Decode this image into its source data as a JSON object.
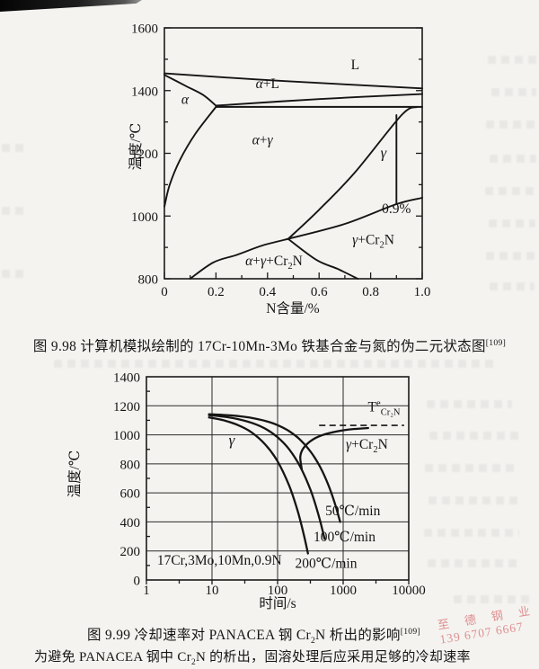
{
  "figure_captions": {
    "fig98": {
      "parts": [
        {
          "t": "图 9.98  计算机模拟绘制的 17Cr-10Mn-3Mo 铁基合金与氮的伪二元状态图"
        },
        {
          "t": "[109]",
          "sup": true
        }
      ]
    },
    "fig99": {
      "parts": [
        {
          "t": "图 9.99  冷却速率对 PANACEA 钢 Cr"
        },
        {
          "t": "2",
          "sub": true
        },
        {
          "t": "N 析出的影响"
        },
        {
          "t": "[109]",
          "sup": true
        }
      ]
    },
    "footnote": {
      "parts": [
        {
          "t": "为避免 PANACEA 钢中 Cr"
        },
        {
          "t": "2",
          "sub": true
        },
        {
          "t": "N 的析出，固溶处理后应采用足够的冷却速率"
        }
      ]
    }
  },
  "watermark": {
    "line1": "至 德 钢 业",
    "line2": "139 6707 6667",
    "color": "rgba(219,124,126,0.85)"
  },
  "chart_data": [
    {
      "id": "fig-9-98",
      "type": "line",
      "title": "17Cr-10Mn-3Mo 铁基合金与氮的伪二元状态图",
      "xlabel": "N含量/%",
      "ylabel": "温度/℃",
      "xscale": "linear",
      "xlim": [
        0,
        1.0
      ],
      "ylim": [
        800,
        1600
      ],
      "grid": false,
      "xtick_values": [
        0,
        0.2,
        0.4,
        0.6,
        0.8,
        1.0
      ],
      "xtick_labels": [
        "0",
        "0.2",
        "0.4",
        "0.6",
        "0.8",
        "1.0"
      ],
      "xtick_minor": [
        0.1,
        0.3,
        0.5,
        0.7,
        0.9
      ],
      "ytick_values": [
        800,
        1000,
        1200,
        1400,
        1600
      ],
      "ytick_labels": [
        "800",
        "1000",
        "1200",
        "1400",
        "1600"
      ],
      "ytick_minor": [
        900,
        1100,
        1300,
        1500
      ],
      "boundaries": [
        {
          "name": "liquidus",
          "points": [
            [
              0,
              1455
            ],
            [
              0.35,
              1436
            ],
            [
              0.7,
              1420
            ],
            [
              1.0,
              1407
            ]
          ]
        },
        {
          "name": "alpha-liquidus-left",
          "points": [
            [
              0,
              1450
            ],
            [
              0.08,
              1416
            ],
            [
              0.15,
              1386
            ],
            [
              0.2,
              1352
            ]
          ]
        },
        {
          "name": "alpha-plus-L-lower",
          "points": [
            [
              0.2,
              1352
            ],
            [
              0.6,
              1373
            ],
            [
              1.0,
              1389
            ]
          ]
        },
        {
          "name": "solidus-1350",
          "points": [
            [
              0.2,
              1348
            ],
            [
              1.0,
              1348
            ]
          ]
        },
        {
          "name": "alpha-to-alphagamma",
          "points": [
            [
              0.2,
              1348
            ],
            [
              0.12,
              1262
            ],
            [
              0.06,
              1178
            ],
            [
              0.02,
              1098
            ],
            [
              0,
              1030
            ]
          ]
        },
        {
          "name": "alphagamma-to-gamma",
          "points": [
            [
              0.98,
              1348
            ],
            [
              0.92,
              1322
            ],
            [
              0.74,
              1140
            ],
            [
              0.6,
              1020
            ],
            [
              0.48,
              927
            ]
          ]
        },
        {
          "name": "gamma-to-gammaCr2N",
          "points": [
            [
              0.48,
              927
            ],
            [
              0.7,
              975
            ],
            [
              0.9,
              1038
            ],
            [
              1.0,
              1058
            ]
          ]
        },
        {
          "name": "alphagammaCr2N-left",
          "points": [
            [
              0.1,
              800
            ],
            [
              0.19,
              852
            ],
            [
              0.28,
              876
            ],
            [
              0.38,
              906
            ],
            [
              0.48,
              927
            ]
          ]
        },
        {
          "name": "alphagammaCr2N-right",
          "points": [
            [
              0.48,
              927
            ],
            [
              0.59,
              860
            ],
            [
              0.67,
              832
            ],
            [
              0.75,
              800
            ]
          ]
        },
        {
          "name": "composition-0.9-line",
          "points": [
            [
              0.9,
              1322
            ],
            [
              0.9,
              1040
            ]
          ]
        }
      ],
      "annotations": [
        {
          "text": "L",
          "x": 0.74,
          "y": 1468
        },
        {
          "text": "α+L",
          "x": 0.4,
          "y": 1408
        },
        {
          "text": "α",
          "x": 0.08,
          "y": 1357
        },
        {
          "text": "α+γ",
          "x": 0.38,
          "y": 1228
        },
        {
          "text": "γ",
          "x": 0.85,
          "y": 1186,
          "size": 16.5
        },
        {
          "text": "0.9%",
          "x": 0.9,
          "y": 1009
        },
        {
          "text": "γ+Cr~2~N",
          "x": 0.81,
          "y": 911
        },
        {
          "text": "α+γ+Cr~2~N",
          "x": 0.425,
          "y": 843
        }
      ]
    },
    {
      "id": "fig-9-99",
      "type": "line",
      "title": "冷却速率对 PANACEA 钢 Cr2N 析出的影响",
      "xlabel": "时间/s",
      "ylabel": "温度/℃",
      "xscale": "log",
      "xlim": [
        1,
        10000
      ],
      "ylim": [
        0,
        1400
      ],
      "grid": true,
      "xtick_values": [
        1,
        10,
        100,
        1000,
        10000
      ],
      "xtick_labels": [
        "1",
        "10",
        "100",
        "1000",
        "10000"
      ],
      "xtick_minor": [
        3.162,
        31.62,
        316.2,
        3162
      ],
      "ytick_values": [
        0,
        200,
        400,
        600,
        800,
        1000,
        1200,
        1400
      ],
      "ytick_labels": [
        "0",
        "200",
        "400",
        "600",
        "800",
        "1000",
        "1200",
        "1400"
      ],
      "ytick_minor": [
        100,
        300,
        500,
        700,
        900,
        1100,
        1300
      ],
      "series": [
        {
          "name": "50℃/min cooling curve",
          "points": [
            [
              9,
              1142
            ],
            [
              15,
              1137
            ],
            [
              25,
              1129
            ],
            [
              40,
              1117
            ],
            [
              65,
              1096
            ],
            [
              100,
              1067
            ],
            [
              150,
              1025
            ],
            [
              220,
              967
            ],
            [
              320,
              883
            ],
            [
              450,
              775
            ],
            [
              600,
              650
            ],
            [
              750,
              525
            ],
            [
              900,
              400
            ]
          ]
        },
        {
          "name": "100℃/min cooling curve",
          "points": [
            [
              9,
              1135
            ],
            [
              15,
              1125
            ],
            [
              25,
              1108
            ],
            [
              40,
              1083
            ],
            [
              65,
              1042
            ],
            [
              100,
              983
            ],
            [
              150,
              900
            ],
            [
              220,
              783
            ],
            [
              320,
              617
            ],
            [
              430,
              433
            ],
            [
              520,
              283
            ]
          ]
        },
        {
          "name": "200℃/min cooling curve",
          "points": [
            [
              9,
              1120
            ],
            [
              15,
              1100
            ],
            [
              25,
              1067
            ],
            [
              40,
              1017
            ],
            [
              65,
              933
            ],
            [
              100,
              817
            ],
            [
              150,
              650
            ],
            [
              200,
              483
            ],
            [
              250,
              317
            ],
            [
              290,
              183
            ]
          ]
        },
        {
          "name": "Cr2N precipitation start (C-curve)",
          "points": [
            [
              234,
              762
            ],
            [
              222,
              850
            ],
            [
              250,
              910
            ],
            [
              340,
              966
            ],
            [
              530,
              1004
            ],
            [
              1100,
              1034
            ],
            [
              2400,
              1047
            ]
          ]
        }
      ],
      "equilibrium_line": {
        "temperature": 1065,
        "t_start": 430,
        "t_end": 8500,
        "label": "T^e^~Cr₂N~",
        "label_x": 4200,
        "label_y": 1160
      },
      "annotations": [
        {
          "text": "γ",
          "x": 20,
          "y": 930,
          "size": 17
        },
        {
          "text": "γ+Cr~2~N",
          "x": 2300,
          "y": 905
        },
        {
          "text": "50℃/min",
          "x": 1400,
          "y": 445
        },
        {
          "text": "100℃/min",
          "x": 1050,
          "y": 265
        },
        {
          "text": "200℃/min",
          "x": 550,
          "y": 85
        },
        {
          "text": "17Cr,3Mo,10Mn,0.9N",
          "x": 13,
          "y": 105
        }
      ]
    }
  ]
}
